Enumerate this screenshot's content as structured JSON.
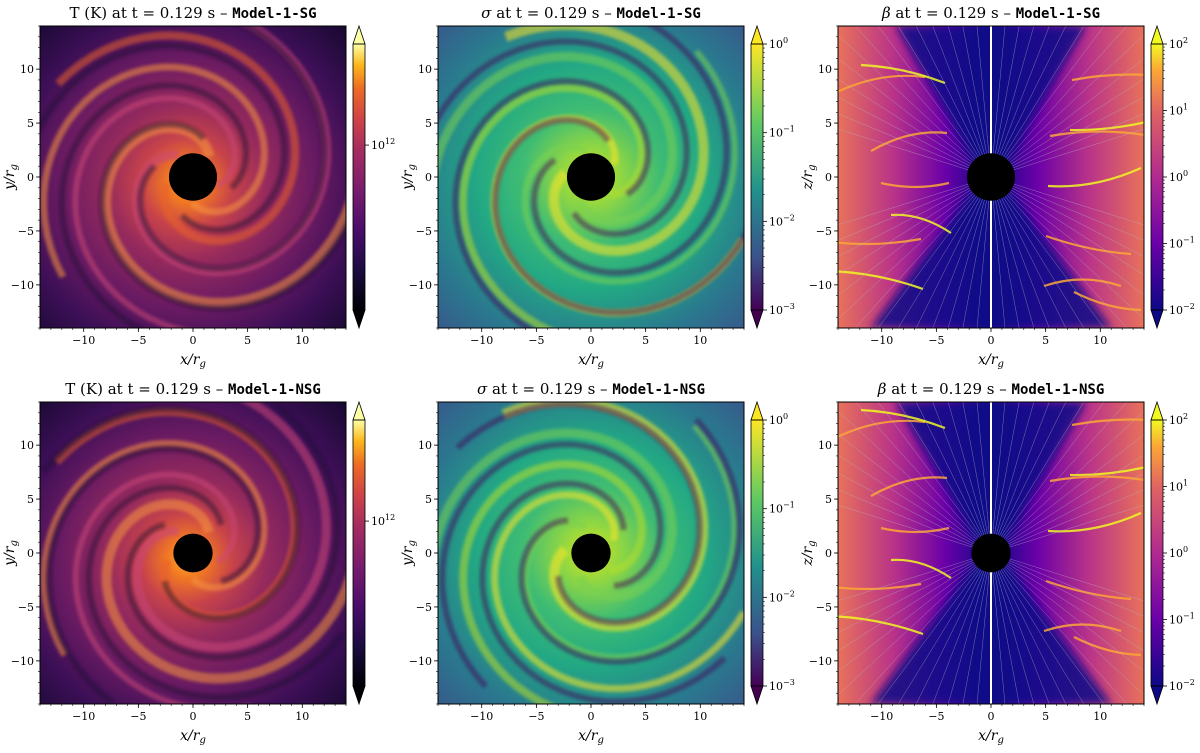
{
  "figure": {
    "panels": [
      {
        "row": 0,
        "col": 0,
        "title": {
          "quantity": "T (K)",
          "time_text": "at t = 0.129 s –",
          "model": "Model-1-SG"
        },
        "xlabel": "x/r_g",
        "ylabel": "y/r_g",
        "colormap": "inferno",
        "colorbar": {
          "scale": "log",
          "tick_labels": [
            "10^12"
          ],
          "extend": "both"
        }
      },
      {
        "row": 0,
        "col": 1,
        "title": {
          "quantity": "σ",
          "time_text": "at t = 0.129 s –",
          "model": "Model-1-SG"
        },
        "xlabel": "x/r_g",
        "ylabel": "y/r_g",
        "colormap": "viridis",
        "colorbar": {
          "scale": "log",
          "tick_labels": [
            "10^0",
            "10^-1",
            "10^-2",
            "10^-3"
          ],
          "extend": "max"
        }
      },
      {
        "row": 0,
        "col": 2,
        "title": {
          "quantity": "β",
          "time_text": "at t = 0.129 s –",
          "model": "Model-1-SG"
        },
        "xlabel": "x/r_g",
        "ylabel": "z/r_g",
        "colormap": "plasma",
        "colorbar": {
          "scale": "log",
          "tick_labels": [
            "10^2",
            "10^1",
            "10^0",
            "10^-1",
            "10^-2"
          ],
          "extend": "both"
        }
      },
      {
        "row": 1,
        "col": 0,
        "title": {
          "quantity": "T (K)",
          "time_text": "at t = 0.129 s –",
          "model": "Model-1-NSG"
        },
        "xlabel": "x/r_g",
        "ylabel": "y/r_g",
        "colormap": "inferno",
        "colorbar": {
          "scale": "log",
          "tick_labels": [
            "10^12"
          ],
          "extend": "both"
        }
      },
      {
        "row": 1,
        "col": 1,
        "title": {
          "quantity": "σ",
          "time_text": "at t = 0.129 s –",
          "model": "Model-1-NSG"
        },
        "xlabel": "x/r_g",
        "ylabel": "y/r_g",
        "colormap": "viridis",
        "colorbar": {
          "scale": "log",
          "tick_labels": [
            "10^0",
            "10^-1",
            "10^-2",
            "10^-3"
          ],
          "extend": "max"
        }
      },
      {
        "row": 1,
        "col": 2,
        "title": {
          "quantity": "β",
          "time_text": "at t = 0.129 s –",
          "model": "Model-1-NSG"
        },
        "xlabel": "x/r_g",
        "ylabel": "z/r_g",
        "colormap": "plasma",
        "colorbar": {
          "scale": "log",
          "tick_labels": [
            "10^2",
            "10^1",
            "10^0",
            "10^-1",
            "10^-2"
          ],
          "extend": "both"
        }
      }
    ]
  },
  "chart_data": [
    {
      "type": "heatmap",
      "title": "T (K) at t = 0.129 s – Model-1-SG",
      "xlabel": "x/r_g",
      "ylabel": "y/r_g",
      "xlim": [
        -14,
        14
      ],
      "ylim": [
        -14,
        14
      ],
      "xticks": [
        -10,
        -5,
        0,
        5,
        10
      ],
      "yticks": [
        10,
        5,
        0,
        -5,
        -10
      ],
      "colorbar_ticks": [
        "10^12"
      ],
      "colormap": "inferno",
      "colorbar_scale": "log",
      "black_hole_radius": 2.2
    },
    {
      "type": "heatmap",
      "title": "σ at t = 0.129 s – Model-1-SG",
      "xlabel": "x/r_g",
      "ylabel": "y/r_g",
      "xlim": [
        -14,
        14
      ],
      "ylim": [
        -14,
        14
      ],
      "xticks": [
        -10,
        -5,
        0,
        5,
        10
      ],
      "yticks": [
        10,
        5,
        0,
        -5,
        -10
      ],
      "colorbar_ticks": [
        "10^0",
        "10^-1",
        "10^-2",
        "10^-3"
      ],
      "colormap": "viridis",
      "colorbar_scale": "log",
      "black_hole_radius": 2.2
    },
    {
      "type": "heatmap",
      "title": "β at t = 0.129 s – Model-1-SG",
      "xlabel": "x/r_g",
      "ylabel": "z/r_g",
      "xlim": [
        -14,
        14
      ],
      "ylim": [
        -14,
        14
      ],
      "xticks": [
        -10,
        -5,
        0,
        5,
        10
      ],
      "yticks": [
        10,
        5,
        0,
        -5,
        -10
      ],
      "colorbar_ticks": [
        "10^2",
        "10^1",
        "10^0",
        "10^-1",
        "10^-2"
      ],
      "colormap": "plasma",
      "colorbar_scale": "log",
      "black_hole_radius": 2.2,
      "streamlines": true
    },
    {
      "type": "heatmap",
      "title": "T (K) at t = 0.129 s – Model-1-NSG",
      "xlabel": "x/r_g",
      "ylabel": "y/r_g",
      "xlim": [
        -14,
        14
      ],
      "ylim": [
        -14,
        14
      ],
      "xticks": [
        -10,
        -5,
        0,
        5,
        10
      ],
      "yticks": [
        10,
        5,
        0,
        -5,
        -10
      ],
      "colorbar_ticks": [
        "10^12"
      ],
      "colormap": "inferno",
      "colorbar_scale": "log",
      "black_hole_radius": 1.8
    },
    {
      "type": "heatmap",
      "title": "σ at t = 0.129 s – Model-1-NSG",
      "xlabel": "x/r_g",
      "ylabel": "y/r_g",
      "xlim": [
        -14,
        14
      ],
      "ylim": [
        -14,
        14
      ],
      "xticks": [
        -10,
        -5,
        0,
        5,
        10
      ],
      "yticks": [
        10,
        5,
        0,
        -5,
        -10
      ],
      "colorbar_ticks": [
        "10^0",
        "10^-1",
        "10^-2",
        "10^-3"
      ],
      "colormap": "viridis",
      "colorbar_scale": "log",
      "black_hole_radius": 1.8
    },
    {
      "type": "heatmap",
      "title": "β at t = 0.129 s – Model-1-NSG",
      "xlabel": "x/r_g",
      "ylabel": "z/r_g",
      "xlim": [
        -14,
        14
      ],
      "ylim": [
        -14,
        14
      ],
      "xticks": [
        -10,
        -5,
        0,
        5,
        10
      ],
      "yticks": [
        10,
        5,
        0,
        -5,
        -10
      ],
      "colorbar_ticks": [
        "10^2",
        "10^1",
        "10^0",
        "10^-1",
        "10^-2"
      ],
      "colormap": "plasma",
      "colorbar_scale": "log",
      "black_hole_radius": 1.8,
      "streamlines": true
    }
  ]
}
